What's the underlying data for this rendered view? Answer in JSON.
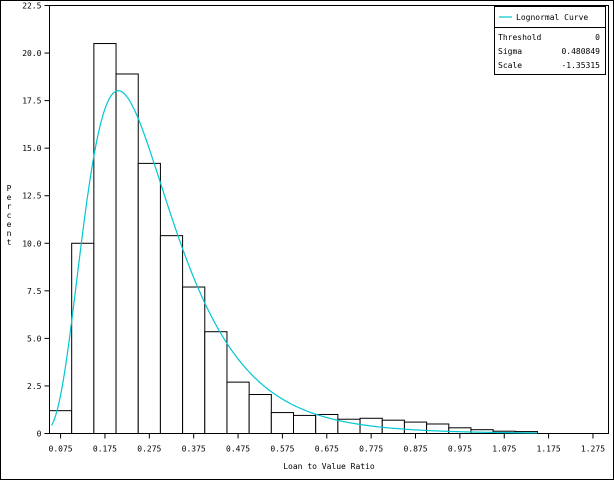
{
  "chart_data": {
    "type": "bar",
    "xlabel": "Loan to Value Ratio",
    "ylabel": "Percent",
    "xlim": [
      0.05,
      1.31
    ],
    "ylim": [
      0,
      22.5
    ],
    "x_ticks": [
      "0.075",
      "0.175",
      "0.275",
      "0.375",
      "0.475",
      "0.575",
      "0.675",
      "0.775",
      "0.875",
      "0.975",
      "1.075",
      "1.175",
      "1.275"
    ],
    "y_ticks": [
      "0",
      "2.5",
      "5.0",
      "7.5",
      "10.0",
      "12.5",
      "15.0",
      "17.5",
      "20.0",
      "22.5"
    ],
    "bin_width": 0.05,
    "bins": [
      {
        "mid": 0.075,
        "value": 1.2
      },
      {
        "mid": 0.125,
        "value": 10.0
      },
      {
        "mid": 0.175,
        "value": 20.5
      },
      {
        "mid": 0.225,
        "value": 18.9
      },
      {
        "mid": 0.275,
        "value": 14.2
      },
      {
        "mid": 0.325,
        "value": 10.4
      },
      {
        "mid": 0.375,
        "value": 7.7
      },
      {
        "mid": 0.425,
        "value": 5.35
      },
      {
        "mid": 0.475,
        "value": 2.7
      },
      {
        "mid": 0.525,
        "value": 2.05
      },
      {
        "mid": 0.575,
        "value": 1.1
      },
      {
        "mid": 0.625,
        "value": 0.95
      },
      {
        "mid": 0.675,
        "value": 1.0
      },
      {
        "mid": 0.725,
        "value": 0.75
      },
      {
        "mid": 0.775,
        "value": 0.8
      },
      {
        "mid": 0.825,
        "value": 0.7
      },
      {
        "mid": 0.875,
        "value": 0.6
      },
      {
        "mid": 0.925,
        "value": 0.5
      },
      {
        "mid": 0.975,
        "value": 0.3
      },
      {
        "mid": 1.025,
        "value": 0.2
      },
      {
        "mid": 1.075,
        "value": 0.12
      },
      {
        "mid": 1.125,
        "value": 0.1
      }
    ],
    "curve": {
      "name": "Lognormal Curve",
      "color": "#00c8d2",
      "threshold": 0,
      "sigma": 0.480849,
      "scale": -1.35315
    },
    "legend": {
      "position": "top-right",
      "line_label": "Lognormal Curve",
      "params": [
        {
          "label": "Threshold",
          "value": "0"
        },
        {
          "label": "Sigma",
          "value": "0.480849"
        },
        {
          "label": "Scale",
          "value": "-1.35315"
        }
      ]
    },
    "grid": false
  }
}
